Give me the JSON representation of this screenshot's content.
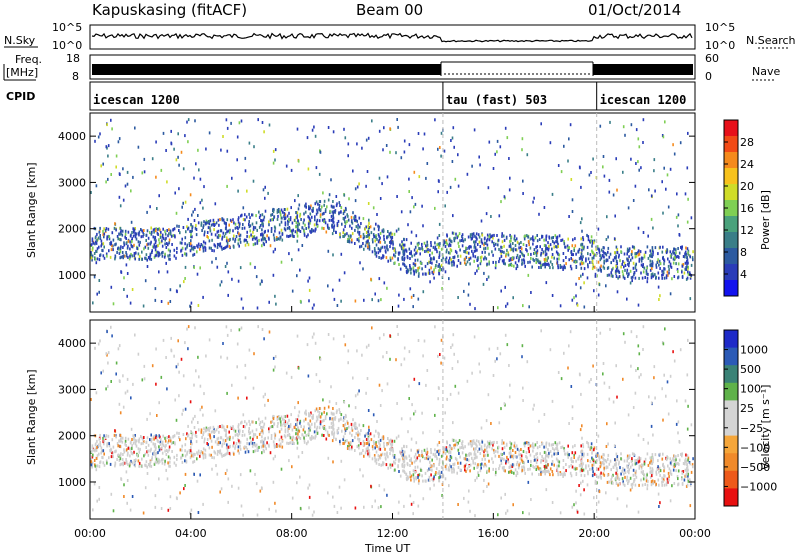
{
  "header": {
    "station": "Kapuskasing (fitACF)",
    "beam": "Beam 00",
    "date": "01/Oct/2014"
  },
  "panels": {
    "nsky_label": "N.Sky",
    "nsearch_label": "N.Search",
    "freq_label": "Freq.",
    "freq_unit": "[MHz]",
    "nave_label": "Nave",
    "cpid_label": "CPID",
    "nsky_ticks": [
      "10^5",
      "10^0"
    ],
    "nsearch_ticks": [
      "10^5",
      "10^0"
    ],
    "freq_ticks": [
      "18",
      "8"
    ],
    "nave_ticks": [
      "60",
      "0"
    ]
  },
  "cpid": [
    {
      "name": "icescan 1200",
      "start": 0,
      "end": 14
    },
    {
      "name": "tau (fast) 503",
      "start": 14,
      "end": 20.1
    },
    {
      "name": "icescan 1200",
      "start": 20.1,
      "end": 24
    }
  ],
  "power_colorbar": {
    "label": "Power [dB]",
    "ticks": [
      "28",
      "24",
      "20",
      "16",
      "12",
      "8",
      "4"
    ],
    "colors": [
      "#e8101a",
      "#f24a16",
      "#f58a1c",
      "#f7c21c",
      "#cfdc28",
      "#7fcf54",
      "#4aa27c",
      "#3a7e88",
      "#2c5aa0",
      "#2a3cb8",
      "#1212ee"
    ]
  },
  "velocity_colorbar": {
    "label": "Velocity [m s⁻¹]",
    "ticks": [
      "1000",
      "500",
      "100",
      "25",
      "−25",
      "−100",
      "−500",
      "−1000"
    ],
    "colors": [
      "#1e2ac8",
      "#2b5ab6",
      "#3a8276",
      "#5fb24a",
      "#d4d4d4",
      "#d4d4d4",
      "#f5a63a",
      "#f08a2a",
      "#ee5a1a",
      "#e81010"
    ]
  },
  "chart_data": [
    {
      "type": "heatmap",
      "name": "power",
      "ylabel": "Slant Range [km]",
      "xlabel": "",
      "x_range_hours": [
        0,
        24
      ],
      "ylim": [
        200,
        4500
      ],
      "yticks": [
        "4000",
        "3000",
        "2000",
        "1000"
      ],
      "xticks": [
        "00:00",
        "04:00",
        "08:00",
        "12:00",
        "16:00",
        "20:00",
        "00:00"
      ]
    },
    {
      "type": "heatmap",
      "name": "velocity",
      "ylabel": "Slant Range [km]",
      "xlabel": "Time UT",
      "x_range_hours": [
        0,
        24
      ],
      "ylim": [
        200,
        4500
      ],
      "yticks": [
        "4000",
        "3000",
        "2000",
        "1000"
      ],
      "xticks": [
        "00:00",
        "04:00",
        "08:00",
        "12:00",
        "16:00",
        "20:00",
        "00:00"
      ]
    }
  ]
}
